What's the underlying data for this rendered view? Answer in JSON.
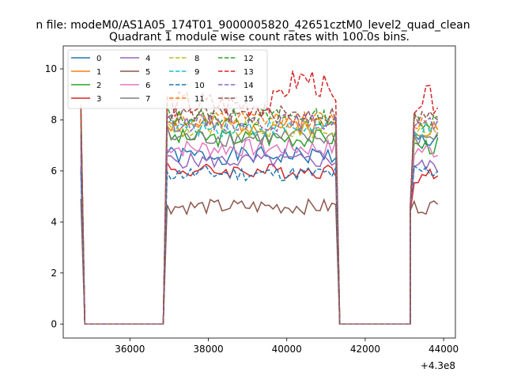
{
  "figure": {
    "suptitle": "n file: modeM0/AS1A05_174T01_9000005820_42651cztM0_level2_quad_clean",
    "axis_offset_label": "+4.3e8"
  },
  "chart_data": {
    "type": "line",
    "title": "Quadrant 1 module wise count rates with 100.0s bins.",
    "xlabel": "",
    "ylabel": "",
    "xlim": [
      34300,
      44300
    ],
    "ylim": [
      -0.55,
      10.9
    ],
    "x_offset": 430000000,
    "xticks": [
      36000,
      38000,
      40000,
      42000,
      44000
    ],
    "yticks": [
      0,
      2,
      4,
      6,
      8,
      10
    ],
    "grid": false,
    "legend": {
      "placement": "upper-left",
      "columns": 4
    },
    "segments": [
      {
        "x_start": 34750,
        "x_end": 34850,
        "flat_zero_until": 36850
      },
      {
        "x_start": 36950,
        "x_end": 41250,
        "flat_zero_until": 43150
      },
      {
        "x_start": 43150,
        "x_end": 43850
      }
    ],
    "series": [
      {
        "name": "0",
        "color": "#1f77b4",
        "dash": "solid",
        "start": 6.2,
        "level": 6.6,
        "amp": 0.35,
        "seg3": 7.2,
        "seed": 1
      },
      {
        "name": "1",
        "color": "#ff7f0e",
        "dash": "solid",
        "start": 8.6,
        "level": 7.8,
        "amp": 0.35,
        "seg3": 7.7,
        "seed": 2
      },
      {
        "name": "2",
        "color": "#2ca02c",
        "dash": "solid",
        "start": 7.4,
        "level": 7.3,
        "amp": 0.35,
        "seg3": 7.0,
        "seed": 3
      },
      {
        "name": "3",
        "color": "#d62728",
        "dash": "solid",
        "start": 6.1,
        "level": 6.0,
        "amp": 0.3,
        "seg3": 5.8,
        "seed": 4
      },
      {
        "name": "4",
        "color": "#9467bd",
        "dash": "solid",
        "start": 6.6,
        "level": 6.4,
        "amp": 0.3,
        "seg3": 6.2,
        "seed": 5
      },
      {
        "name": "5",
        "color": "#8c564b",
        "dash": "solid",
        "start": 4.9,
        "level": 4.6,
        "amp": 0.3,
        "seg3": 4.6,
        "seed": 6
      },
      {
        "name": "6",
        "color": "#e377c2",
        "dash": "solid",
        "start": 7.0,
        "level": 6.9,
        "amp": 0.35,
        "seg3": 6.8,
        "seed": 7
      },
      {
        "name": "7",
        "color": "#7f7f7f",
        "dash": "solid",
        "start": 7.1,
        "level": 7.3,
        "amp": 0.35,
        "seg3": 7.3,
        "seed": 8
      },
      {
        "name": "8",
        "color": "#bcbd22",
        "dash": "dashed",
        "start": 7.8,
        "level": 7.6,
        "amp": 0.35,
        "seg3": 7.5,
        "seed": 9
      },
      {
        "name": "9",
        "color": "#17becf",
        "dash": "dashed",
        "start": 7.9,
        "level": 7.7,
        "amp": 0.35,
        "seg3": 7.6,
        "seed": 10
      },
      {
        "name": "10",
        "color": "#1f77b4",
        "dash": "dashed",
        "start": 6.0,
        "level": 5.9,
        "amp": 0.3,
        "seg3": 6.0,
        "seed": 11
      },
      {
        "name": "11",
        "color": "#ff7f0e",
        "dash": "dashed",
        "start": 8.3,
        "level": 8.0,
        "amp": 0.35,
        "seg3": 7.9,
        "seed": 12
      },
      {
        "name": "12",
        "color": "#2ca02c",
        "dash": "dashed",
        "start": 8.4,
        "level": 8.1,
        "amp": 0.35,
        "seg3": 8.0,
        "seed": 13
      },
      {
        "name": "13",
        "color": "#d62728",
        "dash": "dashed",
        "start": 8.5,
        "level": 8.6,
        "amp": 0.55,
        "seg3": 8.8,
        "seed": 14
      },
      {
        "name": "14",
        "color": "#9467bd",
        "dash": "dashed",
        "start": 7.5,
        "level": 7.9,
        "amp": 0.35,
        "seg3": 7.8,
        "seed": 15
      },
      {
        "name": "15",
        "color": "#8c564b",
        "dash": "dashed",
        "start": 8.4,
        "level": 8.2,
        "amp": 0.35,
        "seg3": 8.1,
        "seed": 16
      }
    ]
  }
}
